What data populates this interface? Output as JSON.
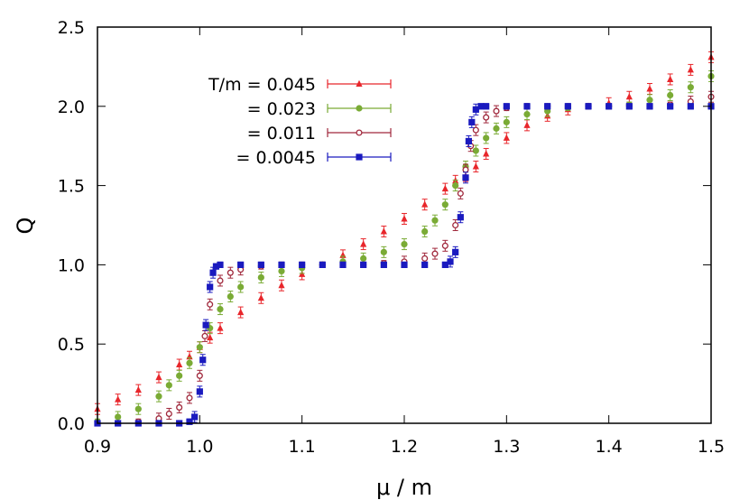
{
  "chart_data": {
    "type": "scatter",
    "xlabel": "μ / m",
    "ylabel": "Q",
    "xlim": [
      0.9,
      1.5
    ],
    "ylim": [
      0.0,
      2.5
    ],
    "xticks": [
      "0.9",
      "1.0",
      "1.1",
      "1.2",
      "1.3",
      "1.4",
      "1.5"
    ],
    "yticks": [
      "0.0",
      "0.5",
      "1.0",
      "1.5",
      "2.0",
      "2.5"
    ],
    "legend_position": "top-left",
    "error_bars": true,
    "series": [
      {
        "name": "T/m = 0.045",
        "color": "#e8262b",
        "marker": "triangle",
        "x": [
          0.9,
          0.92,
          0.94,
          0.96,
          0.98,
          0.99,
          1.0,
          1.01,
          1.02,
          1.04,
          1.06,
          1.08,
          1.1,
          1.12,
          1.14,
          1.16,
          1.18,
          1.2,
          1.22,
          1.24,
          1.25,
          1.26,
          1.27,
          1.28,
          1.3,
          1.32,
          1.34,
          1.36,
          1.38,
          1.4,
          1.42,
          1.44,
          1.46,
          1.48,
          1.5
        ],
        "y": [
          0.09,
          0.15,
          0.21,
          0.29,
          0.37,
          0.42,
          0.48,
          0.54,
          0.6,
          0.7,
          0.79,
          0.87,
          0.94,
          1.0,
          1.06,
          1.13,
          1.21,
          1.29,
          1.38,
          1.48,
          1.53,
          1.56,
          1.62,
          1.7,
          1.8,
          1.88,
          1.94,
          1.98,
          2.0,
          2.02,
          2.06,
          2.11,
          2.17,
          2.23,
          2.31
        ]
      },
      {
        "name": "= 0.023",
        "color": "#7aab35",
        "marker": "circle",
        "x": [
          0.9,
          0.92,
          0.94,
          0.96,
          0.97,
          0.98,
          0.99,
          1.0,
          1.01,
          1.02,
          1.03,
          1.04,
          1.06,
          1.08,
          1.1,
          1.12,
          1.14,
          1.16,
          1.18,
          1.2,
          1.22,
          1.23,
          1.24,
          1.25,
          1.26,
          1.27,
          1.28,
          1.29,
          1.3,
          1.32,
          1.34,
          1.36,
          1.38,
          1.4,
          1.42,
          1.44,
          1.46,
          1.48,
          1.5
        ],
        "y": [
          0.01,
          0.04,
          0.09,
          0.17,
          0.24,
          0.3,
          0.38,
          0.48,
          0.6,
          0.72,
          0.8,
          0.86,
          0.92,
          0.96,
          0.98,
          1.0,
          1.02,
          1.04,
          1.08,
          1.13,
          1.21,
          1.28,
          1.38,
          1.5,
          1.62,
          1.72,
          1.8,
          1.86,
          1.9,
          1.95,
          1.97,
          1.99,
          2.0,
          2.0,
          2.01,
          2.04,
          2.07,
          2.12,
          2.19
        ]
      },
      {
        "name": "= 0.011",
        "color": "#a0283c",
        "marker": "open-circle",
        "x": [
          0.9,
          0.92,
          0.94,
          0.96,
          0.97,
          0.98,
          0.99,
          1.0,
          1.005,
          1.01,
          1.02,
          1.03,
          1.04,
          1.06,
          1.08,
          1.1,
          1.12,
          1.14,
          1.16,
          1.18,
          1.2,
          1.22,
          1.23,
          1.24,
          1.25,
          1.255,
          1.26,
          1.265,
          1.27,
          1.28,
          1.29,
          1.3,
          1.32,
          1.34,
          1.36,
          1.38,
          1.4,
          1.42,
          1.44,
          1.46,
          1.48,
          1.5
        ],
        "y": [
          0.0,
          0.0,
          0.01,
          0.03,
          0.06,
          0.1,
          0.16,
          0.3,
          0.55,
          0.75,
          0.9,
          0.95,
          0.97,
          0.99,
          1.0,
          1.0,
          1.0,
          1.0,
          1.0,
          1.01,
          1.02,
          1.04,
          1.07,
          1.12,
          1.25,
          1.45,
          1.6,
          1.75,
          1.85,
          1.93,
          1.97,
          1.99,
          2.0,
          2.0,
          2.0,
          2.0,
          2.0,
          2.0,
          2.0,
          2.01,
          2.03,
          2.06
        ]
      },
      {
        "name": "= 0.0045",
        "color": "#1a1abf",
        "marker": "square",
        "x": [
          0.9,
          0.92,
          0.94,
          0.96,
          0.98,
          0.99,
          0.995,
          1.0,
          1.003,
          1.006,
          1.01,
          1.013,
          1.016,
          1.02,
          1.04,
          1.06,
          1.08,
          1.1,
          1.12,
          1.14,
          1.16,
          1.18,
          1.2,
          1.22,
          1.24,
          1.245,
          1.25,
          1.255,
          1.26,
          1.263,
          1.266,
          1.27,
          1.275,
          1.28,
          1.3,
          1.32,
          1.34,
          1.36,
          1.38,
          1.4,
          1.42,
          1.44,
          1.46,
          1.48,
          1.5
        ],
        "y": [
          0.0,
          0.0,
          0.0,
          0.0,
          0.0,
          0.01,
          0.04,
          0.2,
          0.4,
          0.62,
          0.86,
          0.95,
          0.99,
          1.0,
          1.0,
          1.0,
          1.0,
          1.0,
          1.0,
          1.0,
          1.0,
          1.0,
          1.0,
          1.0,
          1.0,
          1.02,
          1.08,
          1.3,
          1.55,
          1.78,
          1.9,
          1.98,
          2.0,
          2.0,
          2.0,
          2.0,
          2.0,
          2.0,
          2.0,
          2.0,
          2.0,
          2.0,
          2.0,
          2.0,
          2.0
        ]
      }
    ]
  }
}
